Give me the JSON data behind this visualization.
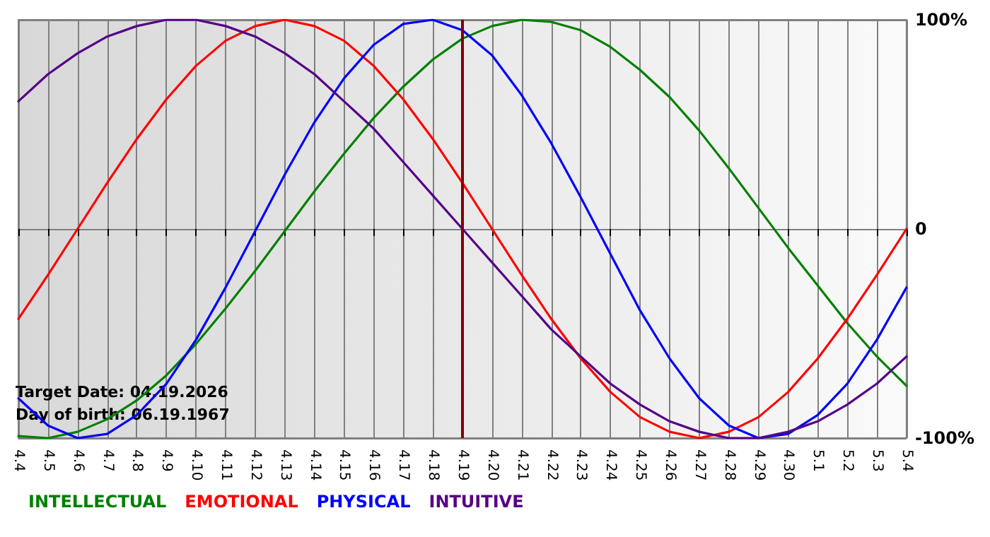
{
  "chart_data": {
    "type": "line",
    "categories": [
      "4.4",
      "4.5",
      "4.6",
      "4.7",
      "4.8",
      "4.9",
      "4.10",
      "4.11",
      "4.12",
      "4.13",
      "4.14",
      "4.15",
      "4.16",
      "4.17",
      "4.18",
      "4.19",
      "4.20",
      "4.21",
      "4.22",
      "4.23",
      "4.24",
      "4.25",
      "4.26",
      "4.27",
      "4.28",
      "4.29",
      "4.30",
      "5.1",
      "5.2",
      "5.3",
      "5.4"
    ],
    "series": [
      {
        "name": "INTELLECTUAL",
        "color": "#008000",
        "values": [
          -99,
          -100,
          -97,
          -91,
          -82,
          -70,
          -55,
          -38,
          -20,
          -1,
          18,
          36,
          53,
          68,
          81,
          91,
          97,
          100,
          99,
          95,
          87,
          76,
          63,
          47,
          29,
          10,
          -9,
          -27,
          -45,
          -61,
          -75
        ]
      },
      {
        "name": "EMOTIONAL",
        "color": "#ff0000",
        "values": [
          -43,
          -22,
          0,
          22,
          43,
          62,
          78,
          90,
          97,
          100,
          97,
          90,
          78,
          62,
          43,
          22,
          0,
          -22,
          -43,
          -62,
          -78,
          -90,
          -97,
          -100,
          -97,
          -90,
          -78,
          -62,
          -43,
          -22,
          0
        ]
      },
      {
        "name": "PHYSICAL",
        "color": "#0000ff",
        "values": [
          -81,
          -94,
          -100,
          -98,
          -89,
          -74,
          -53,
          -28,
          -1,
          26,
          51,
          72,
          88,
          98,
          100,
          95,
          83,
          64,
          41,
          15,
          -12,
          -39,
          -62,
          -81,
          -94,
          -100,
          -98,
          -89,
          -74,
          -53,
          -28
        ]
      },
      {
        "name": "INTUITIVE",
        "color": "#550088",
        "values": [
          61,
          74,
          84,
          92,
          97,
          100,
          100,
          97,
          92,
          84,
          74,
          61,
          48,
          32,
          16,
          0,
          -16,
          -32,
          -48,
          -61,
          -74,
          -84,
          -92,
          -97,
          -100,
          -100,
          -97,
          -92,
          -84,
          -74,
          -61
        ]
      }
    ],
    "ylim": [
      -100,
      100
    ],
    "yticks": [
      {
        "value": -100,
        "label": "-100%"
      },
      {
        "value": 0,
        "label": "0"
      },
      {
        "value": 100,
        "label": "100%"
      }
    ],
    "ref_lines": [
      {
        "axis": "x",
        "value": "4.19",
        "color": "#800000"
      }
    ],
    "annotations": [
      "Target Date: 04.19.2026",
      "Day of birth: 06.19.1967"
    ],
    "grid": true,
    "legend": "bottom left",
    "marker": "none"
  }
}
